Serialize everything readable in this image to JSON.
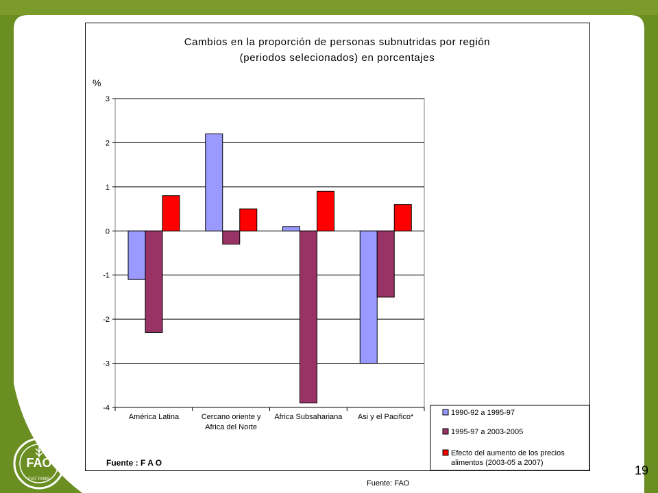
{
  "slide": {
    "page_number": "19",
    "footer_source": "Fuente: FAO",
    "logo_text": [
      "FAO",
      "FIAT PANIS"
    ]
  },
  "colors": {
    "background_green": "#6b8e23",
    "panel": "#ffffff"
  },
  "chart_data": {
    "type": "bar",
    "title_line1": "Cambios en la proporción de personas subnutridas por región",
    "title_line2": "(periodos selecionados) en porcentajes",
    "ylabel": "%",
    "source_note": "Fuente : F A O",
    "ylim": [
      -4,
      3
    ],
    "yticks": [
      "3",
      "2",
      "1",
      "0",
      "-1",
      "-2",
      "-3",
      "-4"
    ],
    "grid": true,
    "legend_position": "bottom-right",
    "categories": [
      [
        "América Latina"
      ],
      [
        "Cercano oriente y",
        "Africa del Norte"
      ],
      [
        "Africa Subsahariana"
      ],
      [
        "Asi y el Pacifico*"
      ]
    ],
    "series": [
      {
        "name": "1990-92 a 1995-97",
        "color": "#9999ff",
        "values": [
          -1.1,
          2.2,
          0.1,
          -3.0
        ]
      },
      {
        "name": "1995-97 a 2003-2005",
        "color": "#993366",
        "values": [
          -2.3,
          -0.3,
          -3.9,
          -1.5
        ]
      },
      {
        "name_lines": [
          "Efecto del aumento de los precios",
          "alimentos (2003-05 a 2007)"
        ],
        "color": "#ff0000",
        "values": [
          0.8,
          0.5,
          0.9,
          0.6
        ]
      }
    ]
  }
}
